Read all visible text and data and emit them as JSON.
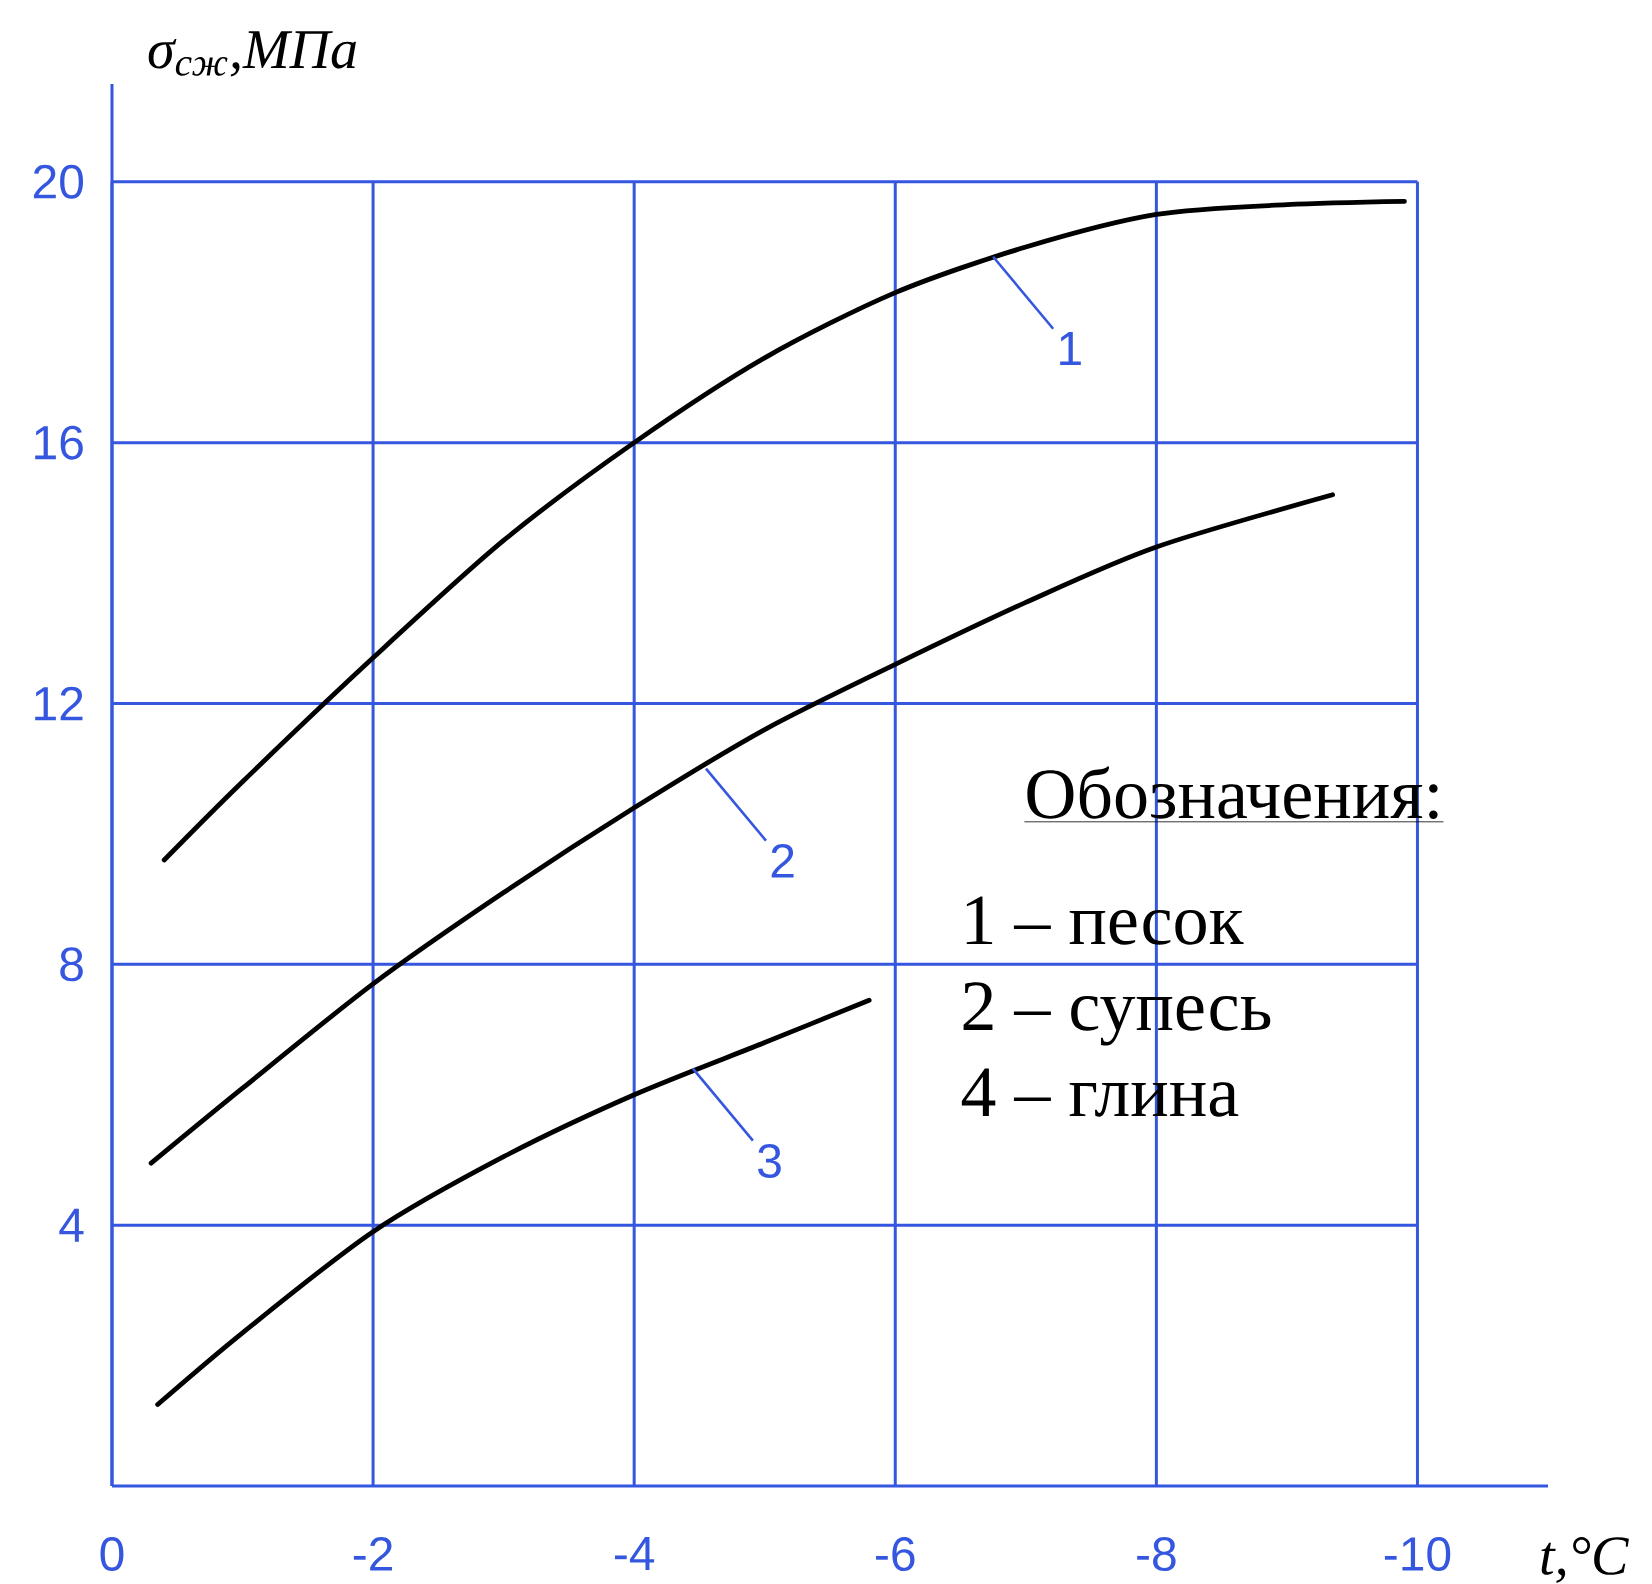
{
  "chart_data": {
    "type": "line",
    "xlabel": "t,°C",
    "ylabel": "σ$_{сж}$,МПа",
    "xlim": [
      0,
      -11
    ],
    "ylim": [
      0,
      21.5
    ],
    "xticks": [
      0,
      -2,
      -4,
      -6,
      -8,
      -10
    ],
    "yticks": [
      4,
      8,
      12,
      16,
      20
    ],
    "grid": true,
    "series": [
      {
        "color": "#000000",
        "x": [
          -0.4,
          -1,
          -2,
          -3,
          -4,
          -5,
          -6,
          -7,
          -8,
          -9,
          -9.9
        ],
        "values": [
          9.6,
          10.8,
          12.7,
          14.5,
          16.0,
          17.3,
          18.3,
          19.0,
          19.5,
          19.65,
          19.7
        ]
      },
      {
        "color": "#000000",
        "x": [
          -0.3,
          -1,
          -2,
          -3,
          -4,
          -5,
          -6,
          -7,
          -8,
          -9.35
        ],
        "values": [
          4.95,
          6.1,
          7.7,
          9.1,
          10.4,
          11.6,
          12.6,
          13.55,
          14.4,
          15.2
        ]
      },
      {
        "color": "#000000",
        "x": [
          -0.35,
          -1,
          -2,
          -3,
          -4,
          -5,
          -5.8
        ],
        "values": [
          1.25,
          2.35,
          3.9,
          5.05,
          6.0,
          6.8,
          7.45
        ]
      }
    ],
    "annotations": [
      {
        "text": "1",
        "x": -6.75,
        "y": 18.85
      },
      {
        "text": "2",
        "x": -4.55,
        "y": 11.0
      },
      {
        "text": "3",
        "x": -4.45,
        "y": 6.4
      },
      "Обозначения:",
      "1 – песок",
      "2 – супесь",
      "4 – глина"
    ]
  }
}
